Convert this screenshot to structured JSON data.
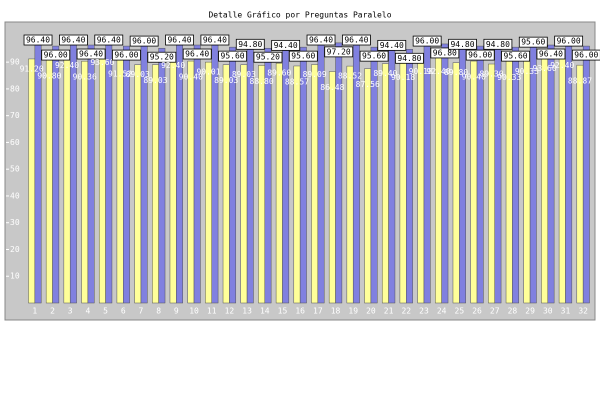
{
  "chart_data": {
    "type": "bar",
    "title": "Detalle Gráfico por Preguntas Paralelo",
    "categories": [
      "1",
      "2",
      "3",
      "4",
      "5",
      "6",
      "7",
      "8",
      "9",
      "10",
      "11",
      "12",
      "13",
      "14",
      "15",
      "16",
      "17",
      "18",
      "19",
      "20",
      "21",
      "22",
      "23",
      "24",
      "25",
      "26",
      "27",
      "28",
      "29",
      "30",
      "31",
      "32"
    ],
    "series": [
      {
        "color": "#ffff99",
        "values": [
          91.2,
          90.8,
          92.4,
          90.36,
          93.6,
          91.52,
          89.03,
          89.03,
          92.4,
          90.4,
          90.01,
          89.03,
          89.03,
          88.8,
          89.6,
          88.57,
          89.09,
          86.48,
          88.52,
          87.56,
          89.4,
          90.18,
          90.18,
          92.4,
          89.8,
          90.4,
          89.3,
          90.33,
          90.33,
          93.6,
          92.4,
          88.87
        ],
        "value_labels": [
          "91.20",
          "90.80",
          "92.40",
          "90.36",
          "93.60",
          "91.52",
          "89.03",
          "89.03",
          "92.40",
          "90.40",
          "90.01",
          "89.03",
          "89.03",
          "88.80",
          "89.60",
          "88.57",
          "89.09",
          "86.48",
          "88.52",
          "87.56",
          "89.40",
          "90.18",
          "90.18",
          "92.40",
          "89.80",
          "90.40",
          "89.30",
          "90.33",
          "90.33",
          "93.60",
          "92.40",
          "88.87"
        ]
      },
      {
        "color": "#8080e0",
        "values": [
          96.4,
          96.0,
          96.4,
          96.4,
          96.4,
          96.0,
          96.0,
          95.2,
          96.4,
          96.4,
          96.4,
          95.6,
          94.8,
          95.2,
          94.4,
          95.6,
          96.4,
          97.2,
          96.4,
          95.6,
          94.4,
          94.8,
          96.0,
          96.8,
          94.8,
          96.0,
          94.8,
          95.6,
          95.6,
          96.4,
          96.0,
          96.0
        ],
        "value_labels": [
          "96.40",
          "96.00",
          "96.40",
          "96.40",
          "96.40",
          "96.00",
          "96.00",
          "95.20",
          "96.40",
          "96.40",
          "96.40",
          "95.60",
          "94.80",
          "95.20",
          "94.40",
          "95.60",
          "96.40",
          "97.20",
          "96.40",
          "95.60",
          "94.40",
          "94.80",
          "96.00",
          "96.80",
          "94.80",
          "96.00",
          "94.80",
          "95.60",
          "95.60",
          "96.40",
          "96.00",
          "96.00"
        ]
      }
    ],
    "ylim": [
      0,
      105
    ],
    "yticks": [
      10,
      20,
      30,
      40,
      50,
      60,
      70,
      80,
      90
    ]
  }
}
